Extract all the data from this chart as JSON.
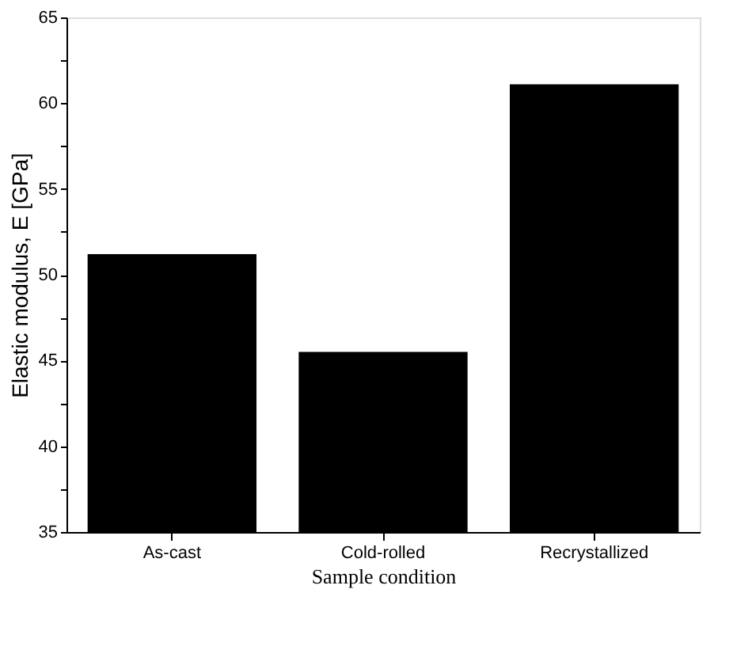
{
  "chart_data": {
    "type": "bar",
    "xlabel": "Sample condition",
    "ylabel": "Elastic modulus, E [GPa]",
    "categories": [
      "As-cast",
      "Cold-rolled",
      "Recrystallized"
    ],
    "values": [
      51.2,
      45.5,
      61.1
    ],
    "color": "#000000",
    "ylim": [
      35,
      65
    ],
    "yticks": [
      35,
      {
        "value": 37.5,
        "label": null
      },
      40,
      {
        "value": 42.5,
        "label": null
      },
      45,
      {
        "value": 47.5,
        "label": null
      },
      50,
      {
        "value": 52.5,
        "label": null
      },
      55,
      {
        "value": 57.5,
        "label": null
      },
      60,
      {
        "value": 62.5,
        "label": null
      },
      65
    ],
    "grid": false
  }
}
